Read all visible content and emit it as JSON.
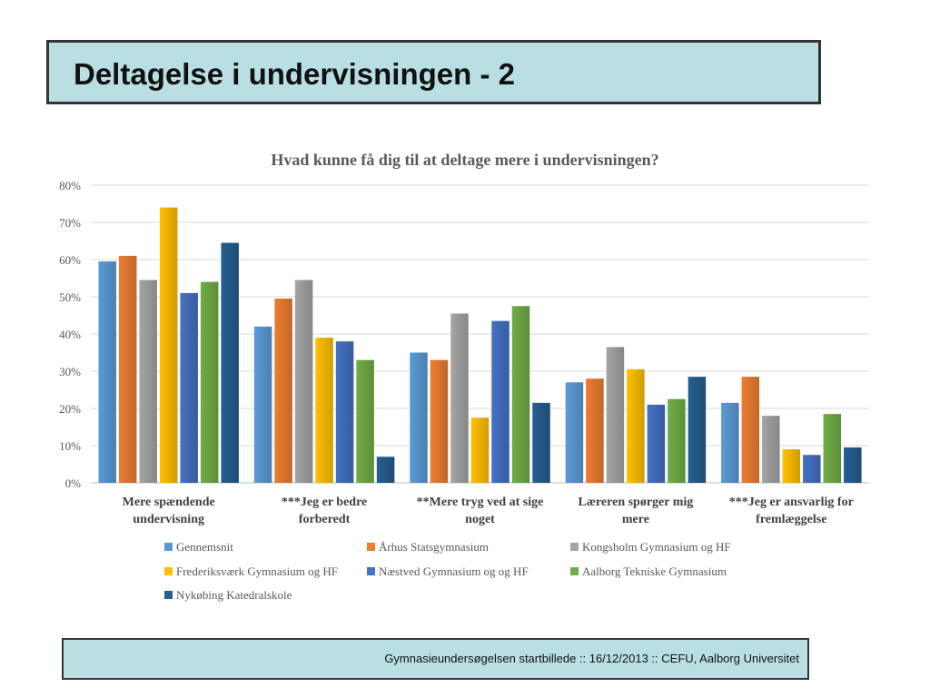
{
  "slide": {
    "title": "Deltagelse i undervisningen - 2",
    "footer": "Gymnasieundersøgelsen startbillede ::  16/12/2013  ::  CEFU, Aalborg Universitet"
  },
  "chart_data": {
    "type": "bar",
    "title": "Hvad kunne få dig til at deltage mere i undervisningen?",
    "xlabel": "",
    "ylabel": "",
    "ylim": [
      0,
      80
    ],
    "yticks": [
      "0%",
      "10%",
      "20%",
      "30%",
      "40%",
      "50%",
      "60%",
      "70%",
      "80%"
    ],
    "grid": true,
    "legend_position": "bottom",
    "categories": [
      [
        "Mere spændende",
        "undervisning"
      ],
      [
        "***Jeg er bedre",
        "forberedt"
      ],
      [
        "**Mere tryg ved at sige",
        "noget"
      ],
      [
        "Læreren spørger mig",
        "mere"
      ],
      [
        "***Jeg er ansvarlig for",
        "fremlæggelse"
      ]
    ],
    "series": [
      {
        "name": "Gennemsnit",
        "color": "#5b9bd5",
        "values": [
          59.5,
          42,
          35,
          27,
          21.5
        ]
      },
      {
        "name": "Århus Statsgymnasium",
        "color": "#ed7d31",
        "values": [
          61,
          49.5,
          33,
          28,
          28.5
        ]
      },
      {
        "name": "Kongsholm Gymnasium og HF",
        "color": "#a5a5a5",
        "values": [
          54.5,
          54.5,
          45.5,
          36.5,
          18
        ]
      },
      {
        "name": "Frederiksværk Gymnasium og HF",
        "color": "#ffc000",
        "values": [
          74,
          39,
          17.5,
          30.5,
          9
        ]
      },
      {
        "name": "Næstved Gymnasium og og HF",
        "color": "#4472c4",
        "values": [
          51,
          38,
          43.5,
          21,
          7.5
        ]
      },
      {
        "name": "Aalborg Tekniske Gymnasium",
        "color": "#70ad47",
        "values": [
          54,
          33,
          47.5,
          22.5,
          18.5
        ]
      },
      {
        "name": "Nykøbing Katedralskole",
        "color": "#255e91",
        "values": [
          64.5,
          7,
          21.5,
          28.5,
          9.5
        ]
      }
    ]
  }
}
